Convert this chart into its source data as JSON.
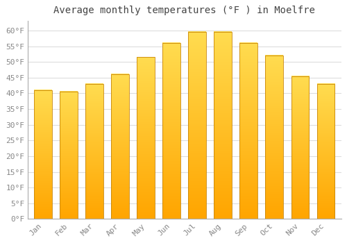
{
  "title": "Average monthly temperatures (°F ) in Moelfre",
  "months": [
    "Jan",
    "Feb",
    "Mar",
    "Apr",
    "May",
    "Jun",
    "Jul",
    "Aug",
    "Sep",
    "Oct",
    "Nov",
    "Dec"
  ],
  "values": [
    41,
    40.5,
    43,
    46,
    51.5,
    56,
    59.5,
    59.5,
    56,
    52,
    45.5,
    43
  ],
  "bar_color": "#FFA500",
  "bar_edge_color": "#C8860A",
  "background_color": "#FFFFFF",
  "plot_bg_color": "#FFFFFF",
  "grid_color": "#DDDDDD",
  "tick_label_color": "#888888",
  "title_color": "#444444",
  "title_fontsize": 10,
  "tick_fontsize": 8,
  "ylim": [
    0,
    63
  ],
  "yticks": [
    0,
    5,
    10,
    15,
    20,
    25,
    30,
    35,
    40,
    45,
    50,
    55,
    60
  ]
}
